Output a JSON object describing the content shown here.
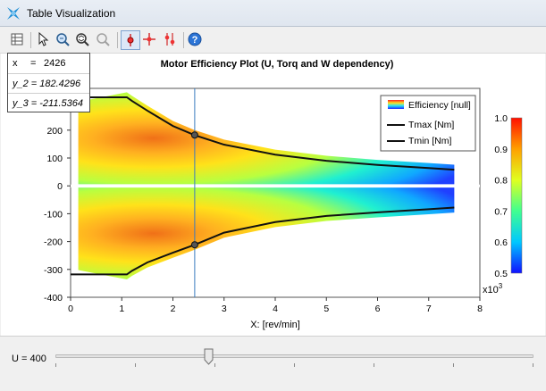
{
  "window": {
    "title": "Table Visualization"
  },
  "toolbar": {
    "buttons": [
      "table-icon",
      "pointer-icon",
      "zoom-in-icon",
      "zoom-fit-icon",
      "zoom-reset-icon",
      "point-cursor-icon",
      "crosshair-icon",
      "multi-cursor-icon",
      "help-icon"
    ]
  },
  "readout": {
    "x_label": "x",
    "x_eq": "=",
    "x_value": "2426",
    "y2": "y_2 = 182.4296",
    "y3": "y_3 = -211.5364"
  },
  "chart_data": {
    "type": "heatmap",
    "title": "Motor Efficiency Plot (U, Torq and W dependency)",
    "xlabel": "X:  [rev/min]",
    "ylabel": "",
    "x_multiplier": "x10",
    "x_multiplier_exp": "3",
    "xlim": [
      0,
      8
    ],
    "ylim": [
      -400,
      350
    ],
    "xticks": [
      "0",
      "1",
      "2",
      "3",
      "4",
      "5",
      "6",
      "7",
      "8"
    ],
    "yticks": [
      "300",
      "200",
      "100",
      "0",
      "-100",
      "-200",
      "-300",
      "-400"
    ],
    "legend": {
      "placement": "top-right",
      "entries": [
        "Efficiency [null]",
        "Tmax [Nm]",
        "Tmin [Nm]"
      ]
    },
    "colorbar": {
      "min": 0.5,
      "max": 1.0,
      "ticks": [
        "1.0",
        "0.9",
        "0.8",
        "0.7",
        "0.6",
        "0.5"
      ]
    },
    "series": [
      {
        "name": "Tmax [Nm]",
        "x": [
          0,
          1.1,
          1.2,
          1.5,
          2.0,
          2.426,
          3.0,
          4.0,
          5.0,
          6.0,
          7.0,
          7.5
        ],
        "y": [
          318,
          318,
          305,
          270,
          215,
          182,
          148,
          112,
          90,
          75,
          64,
          58
        ]
      },
      {
        "name": "Tmin [Nm]",
        "x": [
          0,
          1.1,
          1.2,
          1.5,
          2.0,
          2.426,
          3.0,
          4.0,
          5.0,
          6.0,
          7.0,
          7.5
        ],
        "y": [
          -318,
          -318,
          -305,
          -275,
          -240,
          -211.5,
          -168,
          -130,
          -108,
          -95,
          -84,
          -78
        ]
      }
    ],
    "cursor": {
      "x": 2.426,
      "points": [
        182.4296,
        -211.5364
      ]
    },
    "colors": {
      "high": "#ff2000",
      "mid": "#ffe000",
      "low_mid": "#00d0ff",
      "low": "#1010ff"
    }
  },
  "slider": {
    "label": "U = 400",
    "value": 400,
    "fraction": 0.32,
    "tick_count": 7
  }
}
